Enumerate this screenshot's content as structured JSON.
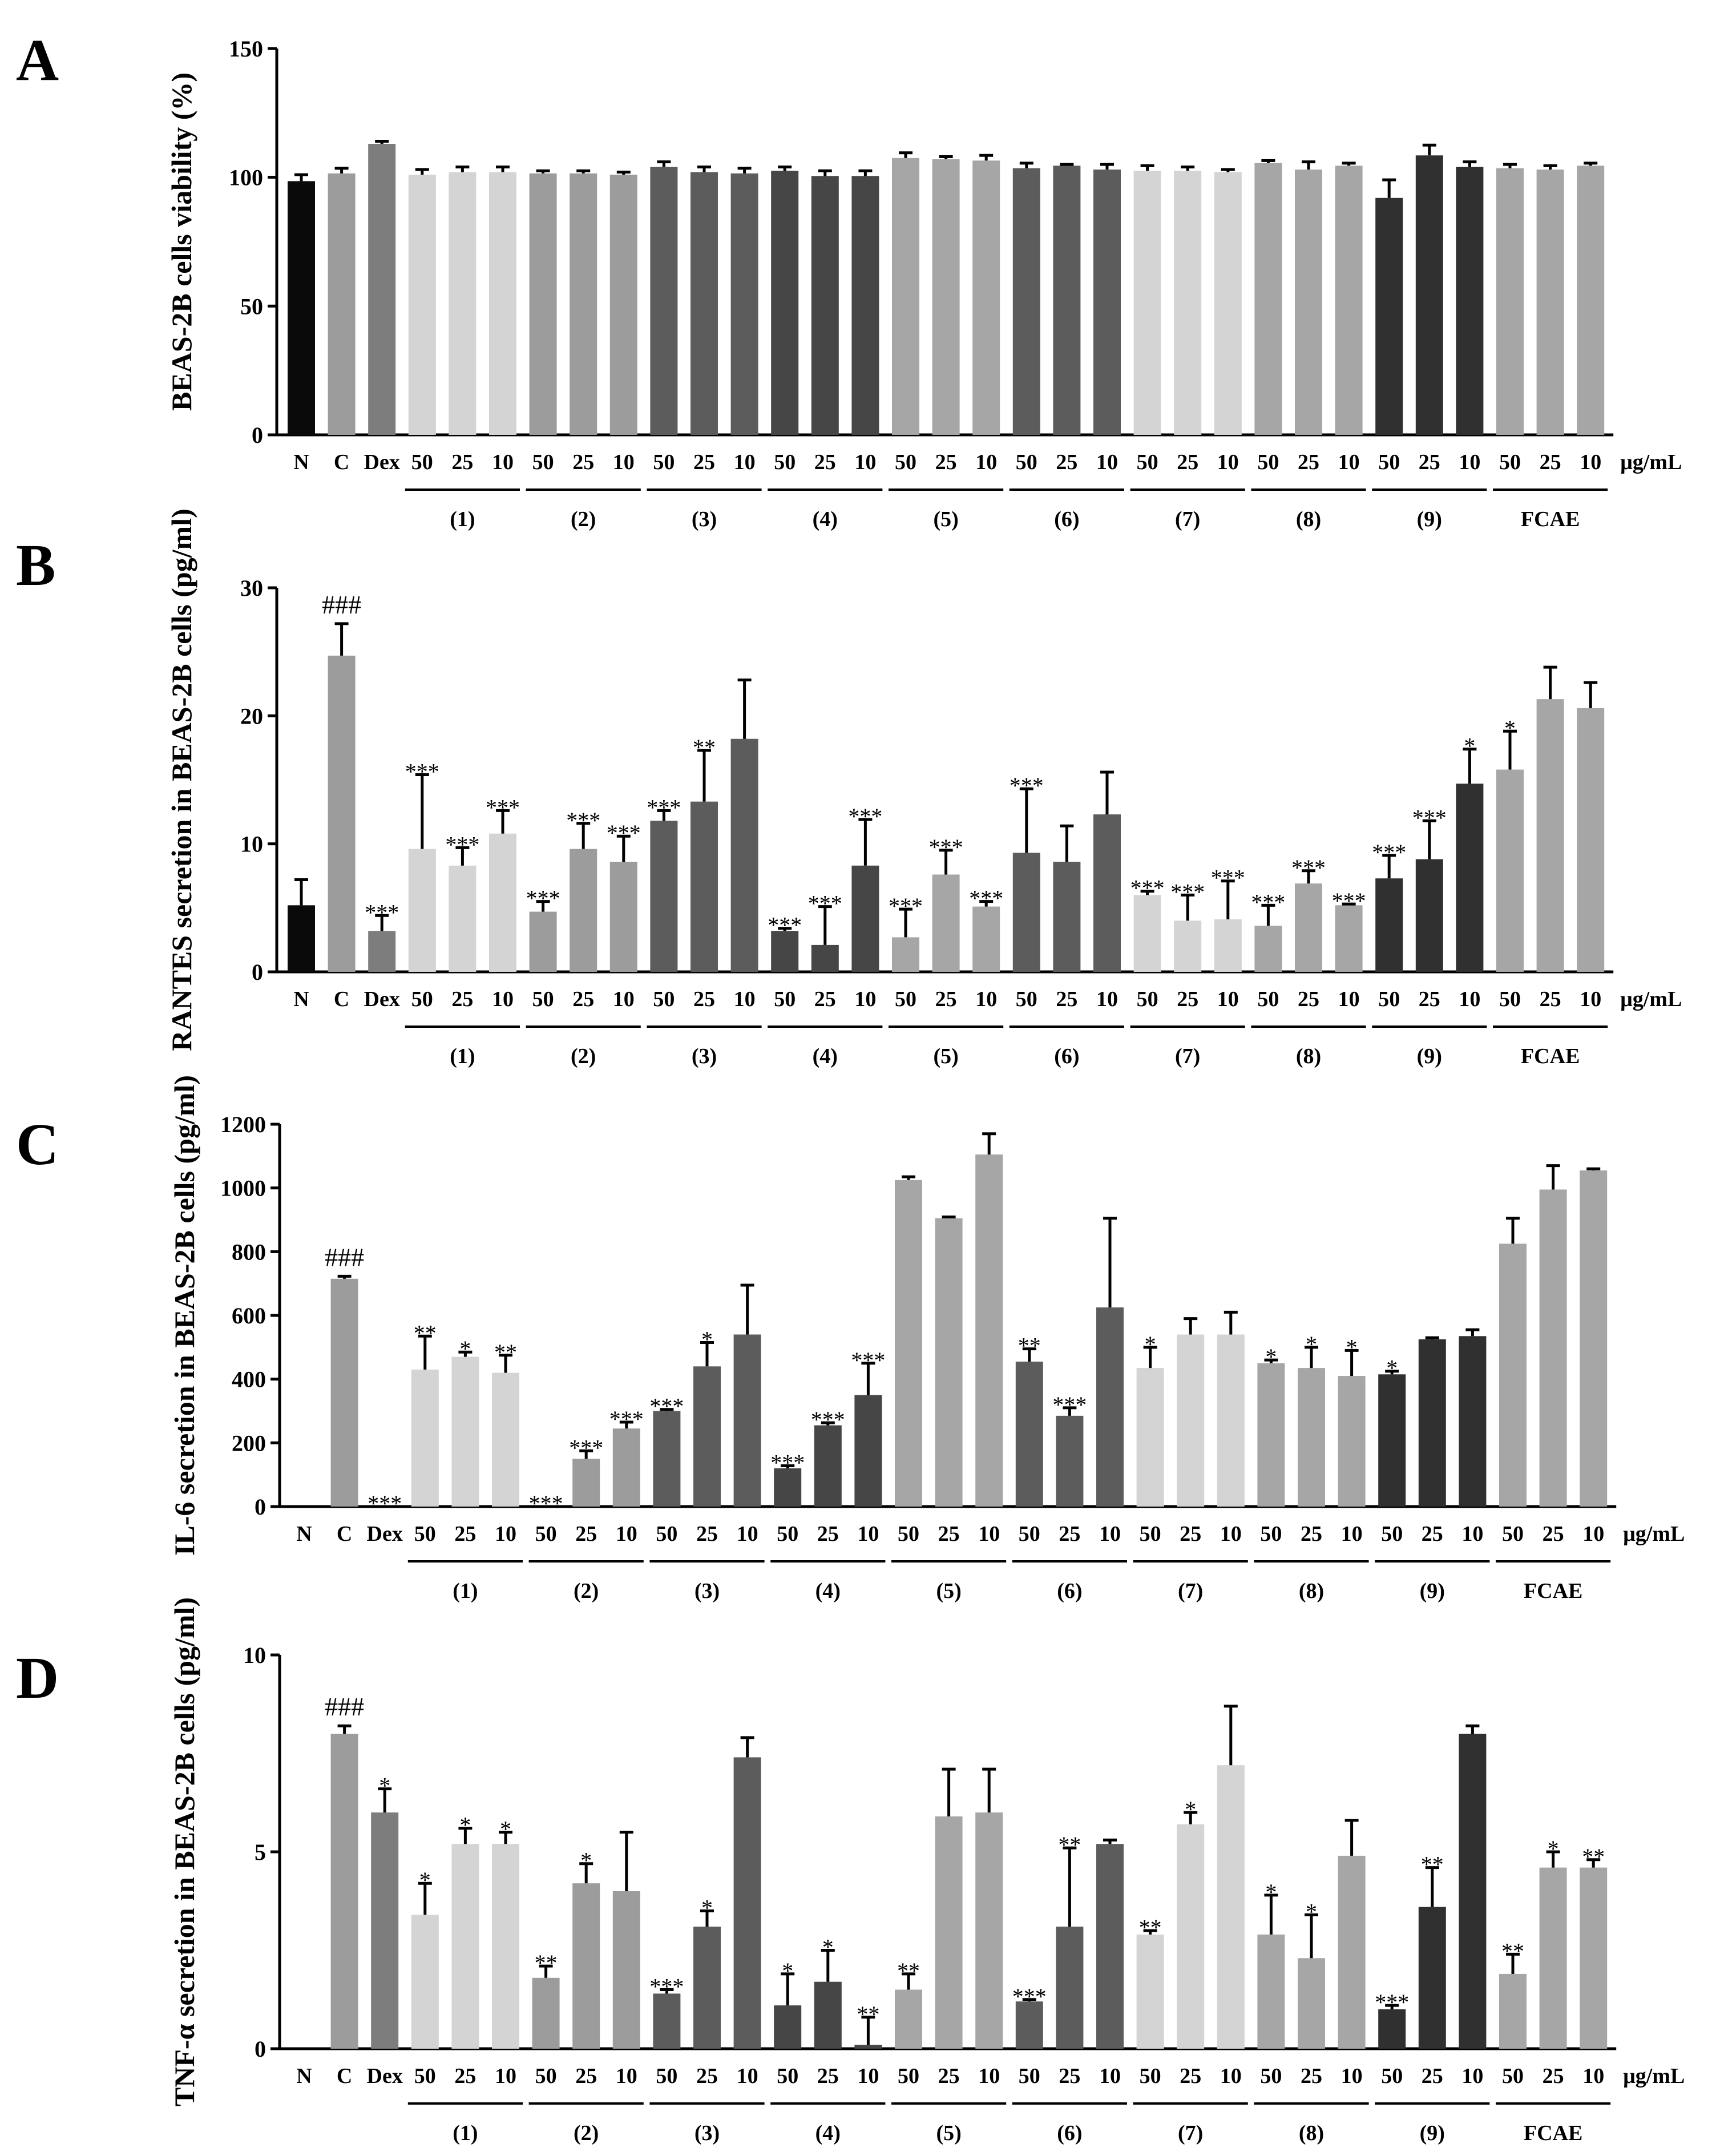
{
  "chart_data": [
    {
      "panel": "A",
      "type": "bar",
      "ylabel": "BEAS-2B cells viability (%)",
      "ylim": [
        0,
        150
      ],
      "yticks": [
        "0",
        "50",
        "100",
        "150"
      ],
      "categories": [
        "N",
        "C",
        "Dex",
        "50",
        "25",
        "10",
        "50",
        "25",
        "10",
        "50",
        "25",
        "10",
        "50",
        "25",
        "10",
        "50",
        "25",
        "10",
        "50",
        "25",
        "10",
        "50",
        "25",
        "10",
        "50",
        "25",
        "10",
        "50",
        "25",
        "10",
        "50",
        "25",
        "10"
      ],
      "unit_label": "μg/mL",
      "groups": [
        "(1)",
        "(2)",
        "(3)",
        "(4)",
        "(5)",
        "(6)",
        "(7)",
        "(8)",
        "(9)",
        "FCAE"
      ],
      "values": [
        98.5,
        101.5,
        113,
        101,
        102,
        102,
        101.5,
        101.5,
        101,
        104,
        102,
        101.5,
        102.5,
        100.5,
        100.5,
        107.5,
        107,
        106.5,
        103.5,
        104.5,
        103,
        102.5,
        102.5,
        102,
        105.5,
        103,
        104.5,
        92,
        108.5,
        104,
        103.5,
        103,
        104.5
      ],
      "errors": [
        2.5,
        2,
        1,
        2,
        2,
        2,
        1,
        1,
        1,
        2,
        2,
        2,
        1.5,
        2,
        2,
        2,
        1,
        2,
        2,
        0.5,
        2,
        2,
        1.5,
        1,
        1,
        3,
        1,
        7,
        4,
        2,
        1.5,
        1.5,
        1
      ],
      "annotations": [
        "",
        "",
        "",
        "",
        "",
        "",
        "",
        "",
        "",
        "",
        "",
        "",
        "",
        "",
        "",
        "",
        "",
        "",
        "",
        "",
        "",
        "",
        "",
        "",
        "",
        "",
        "",
        "",
        "",
        "",
        "",
        "",
        ""
      ]
    },
    {
      "panel": "B",
      "type": "bar",
      "ylabel": "RANTES secretion in BEAS-2B cells (pg/ml)",
      "ylim": [
        0,
        30
      ],
      "yticks": [
        "0",
        "10",
        "20",
        "30"
      ],
      "categories": [
        "N",
        "C",
        "Dex",
        "50",
        "25",
        "10",
        "50",
        "25",
        "10",
        "50",
        "25",
        "10",
        "50",
        "25",
        "10",
        "50",
        "25",
        "10",
        "50",
        "25",
        "10",
        "50",
        "25",
        "10",
        "50",
        "25",
        "10",
        "50",
        "25",
        "10",
        "50",
        "25",
        "10"
      ],
      "unit_label": "μg/mL",
      "groups": [
        "(1)",
        "(2)",
        "(3)",
        "(4)",
        "(5)",
        "(6)",
        "(7)",
        "(8)",
        "(9)",
        "FCAE"
      ],
      "values": [
        5.2,
        24.7,
        3.2,
        9.6,
        8.3,
        10.8,
        4.7,
        9.6,
        8.6,
        11.8,
        13.3,
        18.2,
        3.2,
        2.1,
        8.3,
        2.7,
        7.6,
        5.1,
        9.3,
        8.6,
        12.3,
        6,
        4,
        4.1,
        3.6,
        6.9,
        5.2,
        7.3,
        8.8,
        14.7,
        15.8,
        21.3,
        20.6
      ],
      "errors": [
        2,
        2.5,
        1.2,
        5.8,
        1.4,
        1.8,
        0.8,
        2,
        2,
        0.8,
        4,
        4.6,
        0.2,
        3,
        3.6,
        2.2,
        1.9,
        0.4,
        5,
        2.8,
        3.3,
        0.3,
        2,
        3,
        1.6,
        1,
        0.1,
        1.8,
        3,
        2.7,
        3,
        2.5,
        2
      ],
      "annotations": [
        "",
        "###",
        "***",
        "***",
        "***",
        "***",
        "***",
        "***",
        "***",
        "***",
        "**",
        "",
        "***",
        "***",
        "***",
        "***",
        "***",
        "***",
        "***",
        "",
        "",
        "***",
        "***",
        "***",
        "***",
        "***",
        "***",
        "***",
        "***",
        "*",
        "*",
        "",
        ""
      ]
    },
    {
      "panel": "C",
      "type": "bar",
      "ylabel": "IL-6 secretion in BEAS-2B cells (pg/ml)",
      "ylim": [
        0,
        1200
      ],
      "yticks": [
        "0",
        "200",
        "400",
        "600",
        "800",
        "1000",
        "1200"
      ],
      "categories": [
        "N",
        "C",
        "Dex",
        "50",
        "25",
        "10",
        "50",
        "25",
        "10",
        "50",
        "25",
        "10",
        "50",
        "25",
        "10",
        "50",
        "25",
        "10",
        "50",
        "25",
        "10",
        "50",
        "25",
        "10",
        "50",
        "25",
        "10",
        "50",
        "25",
        "10",
        "50",
        "25",
        "10"
      ],
      "unit_label": "μg/mL",
      "groups": [
        "(1)",
        "(2)",
        "(3)",
        "(4)",
        "(5)",
        "(6)",
        "(7)",
        "(8)",
        "(9)",
        "FCAE"
      ],
      "values": [
        0,
        715,
        0,
        430,
        470,
        420,
        0,
        150,
        245,
        300,
        440,
        540,
        120,
        255,
        350,
        1025,
        905,
        1105,
        455,
        285,
        625,
        435,
        540,
        540,
        450,
        435,
        410,
        415,
        525,
        535,
        825,
        995,
        1055
      ],
      "errors": [
        0,
        8,
        0,
        105,
        15,
        55,
        0,
        25,
        20,
        5,
        75,
        155,
        8,
        8,
        100,
        10,
        4,
        65,
        40,
        25,
        280,
        65,
        50,
        70,
        10,
        65,
        80,
        10,
        5,
        20,
        80,
        75,
        5
      ],
      "annotations": [
        "",
        "###",
        "***",
        "**",
        "*",
        "**",
        "***",
        "***",
        "***",
        "***",
        "*",
        "",
        "***",
        "***",
        "***",
        "",
        "",
        "",
        "**",
        "***",
        "",
        "*",
        "",
        "",
        "*",
        "*",
        "*",
        "*",
        "",
        "",
        "",
        "",
        ""
      ]
    },
    {
      "panel": "D",
      "type": "bar",
      "ylabel": "TNF-α secretion in BEAS-2B cells (pg/ml)",
      "ylim": [
        0,
        10
      ],
      "yticks": [
        "0",
        "5",
        "10"
      ],
      "categories": [
        "N",
        "C",
        "Dex",
        "50",
        "25",
        "10",
        "50",
        "25",
        "10",
        "50",
        "25",
        "10",
        "50",
        "25",
        "10",
        "50",
        "25",
        "10",
        "50",
        "25",
        "10",
        "50",
        "25",
        "10",
        "50",
        "25",
        "10",
        "50",
        "25",
        "10",
        "50",
        "25",
        "10"
      ],
      "unit_label": "μg/mL",
      "groups": [
        "(1)",
        "(2)",
        "(3)",
        "(4)",
        "(5)",
        "(6)",
        "(7)",
        "(8)",
        "(9)",
        "FCAE"
      ],
      "values": [
        0,
        8,
        6,
        3.4,
        5.2,
        5.2,
        1.8,
        4.2,
        4,
        1.4,
        3.1,
        7.4,
        1.1,
        1.7,
        0.1,
        1.5,
        5.9,
        6,
        1.2,
        3.1,
        5.2,
        2.9,
        5.7,
        7.2,
        2.9,
        2.3,
        4.9,
        1,
        3.6,
        8,
        1.9,
        4.6,
        4.6
      ],
      "errors": [
        0,
        0.2,
        0.6,
        0.8,
        0.4,
        0.3,
        0.3,
        0.5,
        1.5,
        0.1,
        0.4,
        0.5,
        0.8,
        0.8,
        0.7,
        0.4,
        1.2,
        1.1,
        0.05,
        2,
        0.1,
        0.1,
        0.3,
        1.5,
        1,
        1.1,
        0.9,
        0.1,
        1,
        0.2,
        0.5,
        0.4,
        0.2
      ],
      "annotations": [
        "",
        "###",
        "*",
        "*",
        "*",
        "*",
        "**",
        "*",
        "",
        "***",
        "*",
        "",
        "*",
        "*",
        "**",
        "**",
        "",
        "",
        "***",
        "**",
        "",
        "**",
        "*",
        "",
        "*",
        "*",
        "",
        "***",
        "**",
        "",
        "**",
        "*",
        "**"
      ]
    }
  ],
  "colors": {
    "axis": "#000000",
    "bar_colors": [
      "#0a0a0a",
      "#9c9c9c",
      "#7d7d7d",
      "#d4d4d4",
      "#d4d4d4",
      "#d4d4d4",
      "#9c9c9c",
      "#9c9c9c",
      "#9c9c9c",
      "#5c5c5c",
      "#5c5c5c",
      "#5c5c5c",
      "#464646",
      "#464646",
      "#464646",
      "#a6a6a6",
      "#a6a6a6",
      "#a6a6a6",
      "#5c5c5c",
      "#5c5c5c",
      "#5c5c5c",
      "#d4d4d4",
      "#d4d4d4",
      "#d4d4d4",
      "#a6a6a6",
      "#a6a6a6",
      "#a6a6a6",
      "#303030",
      "#303030",
      "#303030",
      "#a6a6a6",
      "#a6a6a6",
      "#a6a6a6"
    ]
  }
}
